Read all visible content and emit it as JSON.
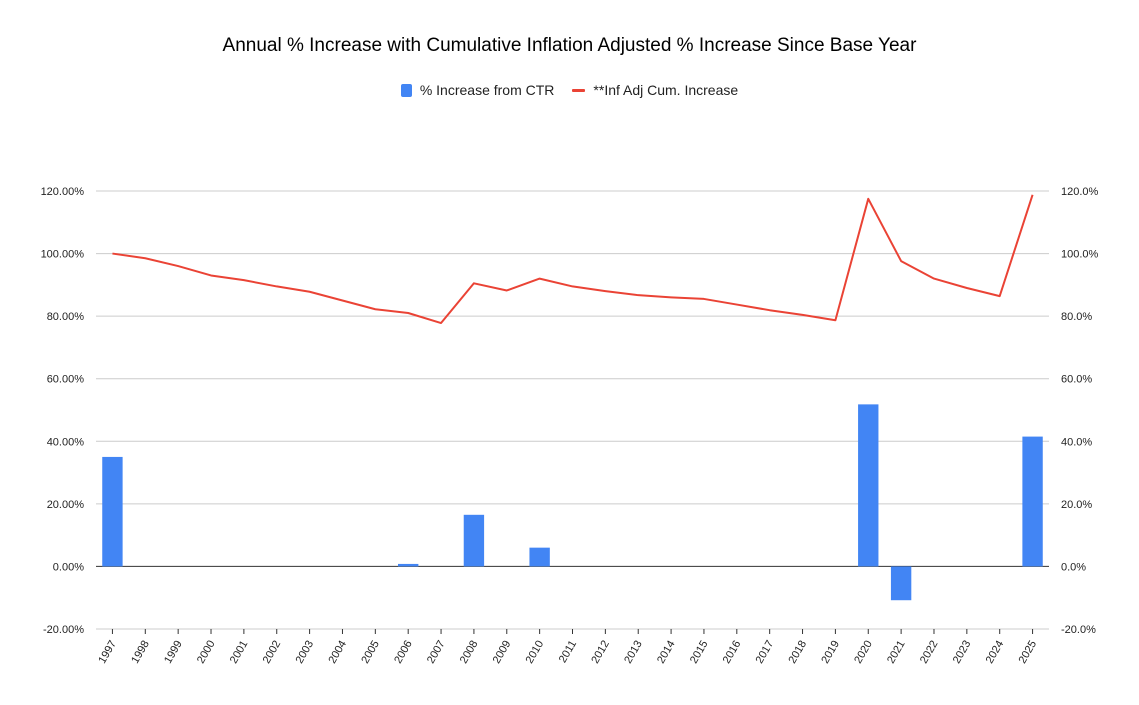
{
  "chart_data": {
    "type": "bar+line",
    "title": "Annual % Increase with Cumulative Inflation Adjusted % Increase Since Base Year",
    "categories": [
      "1997",
      "1998",
      "1999",
      "2000",
      "2001",
      "2002",
      "2003",
      "2004",
      "2005",
      "2006",
      "2007",
      "2008",
      "2009",
      "2010",
      "2011",
      "2012",
      "2013",
      "2014",
      "2015",
      "2016",
      "2017",
      "2018",
      "2019",
      "2020",
      "2021",
      "2022",
      "2023",
      "2024",
      "2025"
    ],
    "series": [
      {
        "name": "% Increase from CTR",
        "type": "bar",
        "axis": "left",
        "color": "#4285F4",
        "values": [
          35.0,
          0,
          0,
          0,
          0,
          0,
          0,
          0,
          0,
          0.8,
          0,
          16.5,
          0,
          6.0,
          0,
          0,
          0,
          0,
          0,
          0,
          0,
          0,
          0,
          51.8,
          -10.8,
          0,
          0,
          0,
          41.5
        ]
      },
      {
        "name": "**Inf Adj Cum. Increase",
        "type": "line",
        "axis": "right",
        "color": "#EA4335",
        "values": [
          100.0,
          98.5,
          96.0,
          93.0,
          91.5,
          89.5,
          87.8,
          85.0,
          82.2,
          81.0,
          77.8,
          90.5,
          88.2,
          92.0,
          89.5,
          88.0,
          86.7,
          86.0,
          85.5,
          83.7,
          81.9,
          80.4,
          78.7,
          117.5,
          97.6,
          92.0,
          89.0,
          86.4,
          118.8
        ]
      }
    ],
    "y_left": {
      "min": -20,
      "max": 120,
      "step": 20,
      "tick_labels": [
        "-20.00%",
        "0.00%",
        "20.00%",
        "40.00%",
        "60.00%",
        "80.00%",
        "100.00%",
        "120.00%"
      ]
    },
    "y_right": {
      "min": -20,
      "max": 120,
      "step": 20,
      "tick_labels": [
        "-20.0%",
        "0.0%",
        "20.0%",
        "40.0%",
        "60.0%",
        "80.0%",
        "100.0%",
        "120.0%"
      ]
    },
    "grid": true,
    "legend_position": "top"
  }
}
